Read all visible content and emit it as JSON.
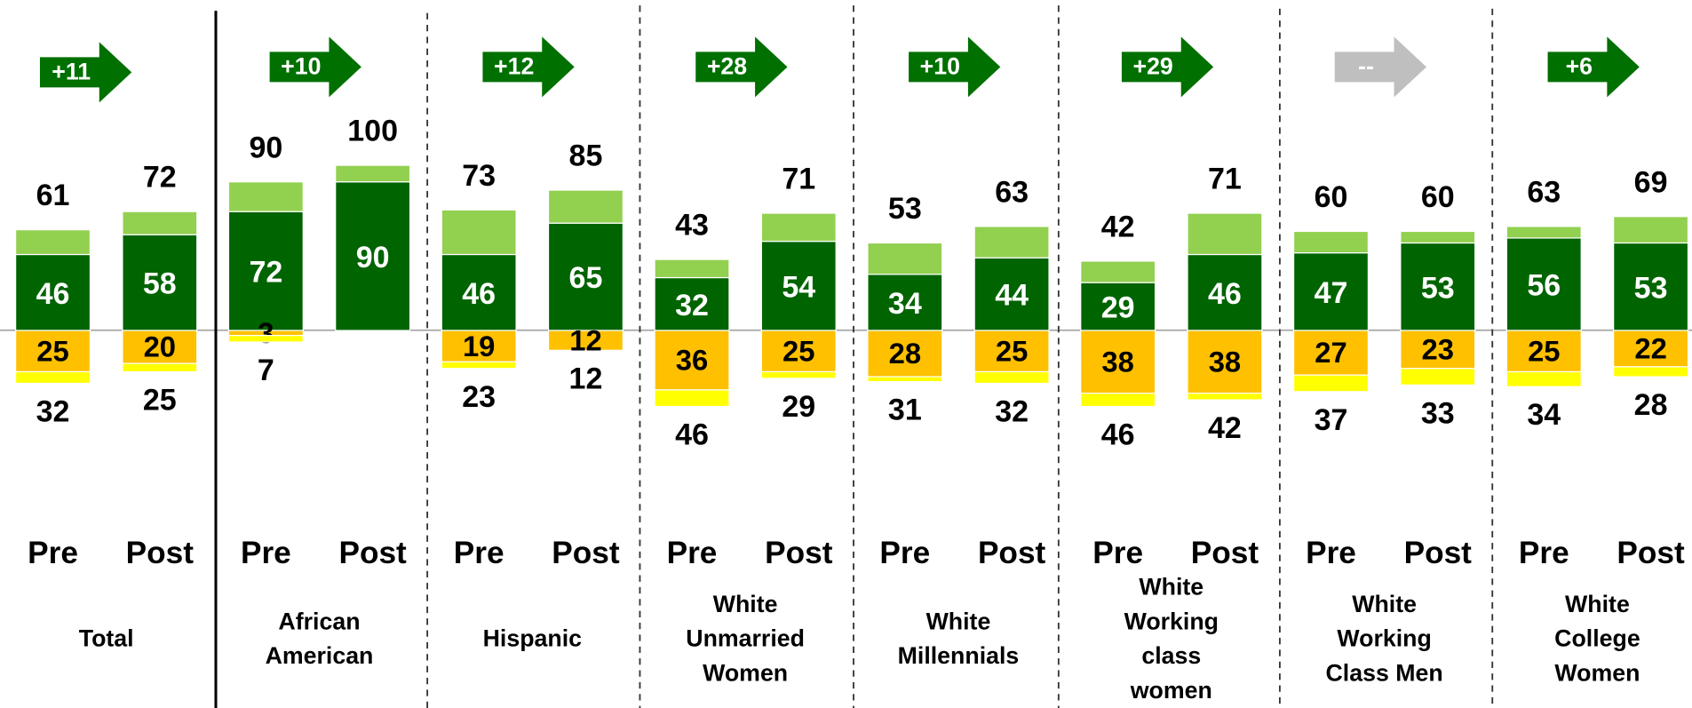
{
  "chart_data": {
    "type": "diverging_stacked_bar",
    "groups": [
      "Total",
      "African American",
      "Hispanic",
      "White Unmarried Women",
      "White Millennials",
      "White Working class women",
      "White Working Class Men",
      "White College Women"
    ],
    "categories": [
      "Pre",
      "Post",
      "Pre",
      "Post",
      "Pre",
      "Post",
      "Pre",
      "Post",
      "Pre",
      "Post",
      "Pre",
      "Post",
      "Pre",
      "Post",
      "Pre",
      "Post"
    ],
    "changes": [
      {
        "label": "+11",
        "color": "#007000"
      },
      {
        "label": "+10",
        "color": "#007000"
      },
      {
        "label": "+12",
        "color": "#007000"
      },
      {
        "label": "+28",
        "color": "#007000"
      },
      {
        "label": "+10",
        "color": "#007000"
      },
      {
        "label": "+29",
        "color": "#007000"
      },
      {
        "label": "--",
        "color": "#bfbfbf"
      },
      {
        "label": "+6",
        "color": "#007000"
      }
    ],
    "ylim": [
      -60,
      140
    ],
    "series": [
      {
        "color": "#006400",
        "values": [
          46,
          58,
          72,
          90,
          46,
          65,
          32,
          54,
          34,
          44,
          29,
          46,
          47,
          53,
          56,
          53
        ]
      },
      {
        "color": "#92d050",
        "values": [
          15,
          14,
          18,
          10,
          27,
          20,
          11,
          17,
          19,
          19,
          13,
          25,
          13,
          7,
          7,
          16
        ]
      },
      {
        "color": "#ffc000",
        "values": [
          -25,
          -20,
          -3,
          null,
          -19,
          -12,
          -36,
          -25,
          -28,
          -25,
          -38,
          -38,
          -27,
          -23,
          -25,
          -22
        ],
        "value_labels": [
          "25",
          "20",
          "3",
          null,
          "19",
          "12",
          "36",
          "25",
          "28",
          "25",
          "38",
          "38",
          "27",
          "23",
          "25",
          "22"
        ]
      },
      {
        "color": "#ffff00",
        "values": [
          -7,
          -5,
          -4,
          null,
          -4,
          0,
          -10,
          -4,
          -3,
          -7,
          -8,
          -4,
          -10,
          -10,
          -9,
          -6
        ]
      }
    ],
    "totals": [
      {
        "values": [
          61,
          72,
          90,
          100,
          73,
          85,
          43,
          71,
          53,
          63,
          42,
          71,
          60,
          60,
          63,
          69
        ]
      },
      {
        "values": [
          -32,
          -25,
          -7,
          null,
          -23,
          -12,
          -46,
          -29,
          -31,
          -32,
          -46,
          -42,
          -37,
          -33,
          -34,
          -28
        ],
        "value_labels": [
          "32",
          "25",
          "7",
          null,
          "23",
          "12",
          "46",
          "29",
          "31",
          "32",
          "46",
          "42",
          "37",
          "33",
          "34",
          "28"
        ]
      }
    ]
  }
}
